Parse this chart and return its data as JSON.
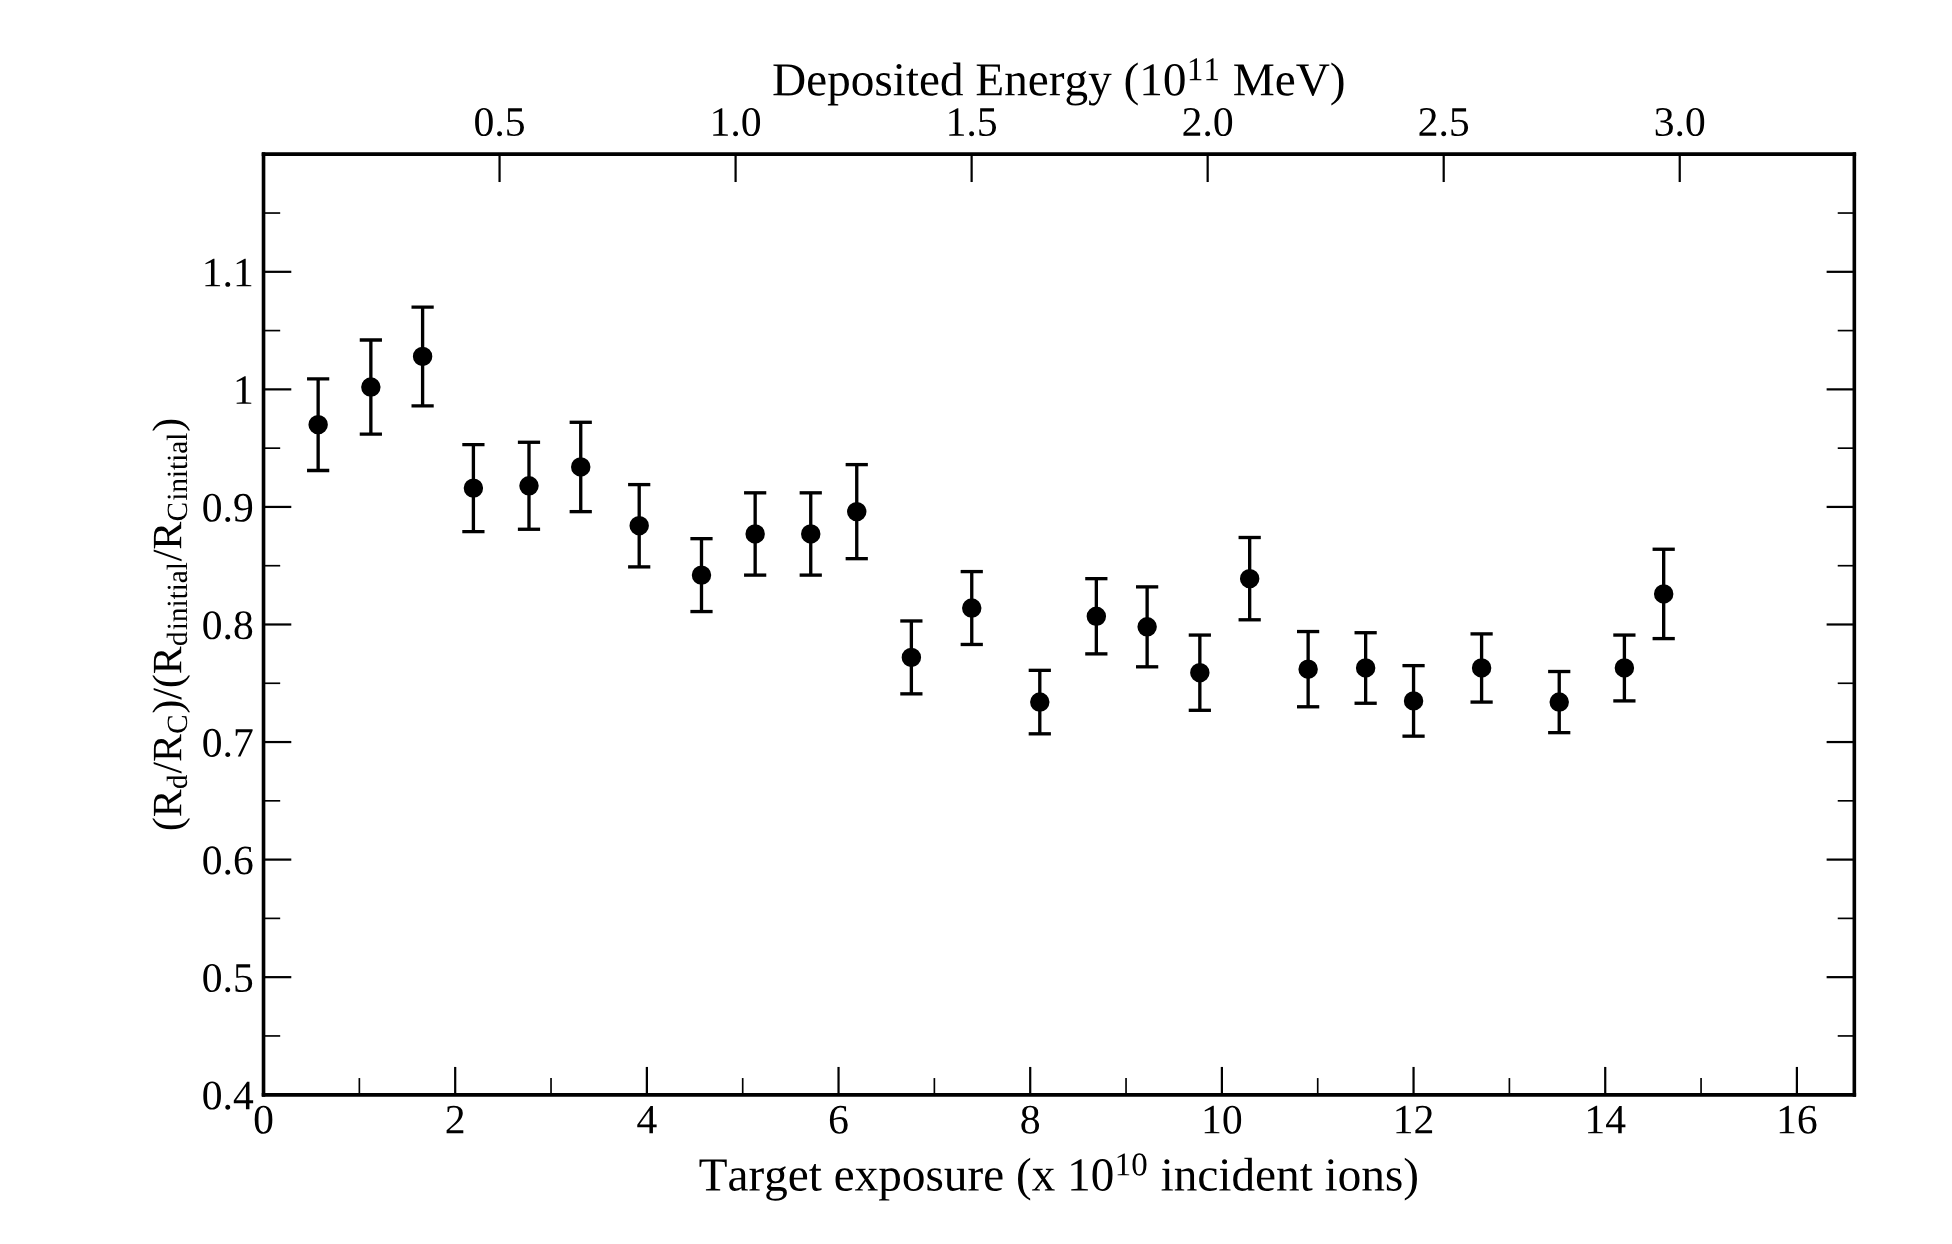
{
  "chart_data": {
    "type": "scatter",
    "xlabel": "Target exposure (x 10$^{10}$ incident ions)",
    "ylabel": "(R$_{d}$/R$_{C}$)/(R$_{d}$$_{initial}$/R$_{C}$$_{initial}$)",
    "x2label": "Deposited Energy (10$^{11}$ MeV)",
    "x": [
      0.57,
      1.12,
      1.66,
      2.19,
      2.77,
      3.31,
      3.92,
      4.57,
      5.13,
      5.71,
      6.19,
      6.76,
      7.39,
      8.1,
      8.69,
      9.22,
      9.77,
      10.29,
      10.9,
      11.5,
      12.0,
      12.71,
      13.52,
      14.2,
      14.61
    ],
    "values": [
      0.97,
      1.002,
      1.028,
      0.916,
      0.918,
      0.934,
      0.884,
      0.842,
      0.877,
      0.877,
      0.896,
      0.772,
      0.814,
      0.734,
      0.807,
      0.798,
      0.759,
      0.839,
      0.762,
      0.763,
      0.735,
      0.763,
      0.734,
      0.763,
      0.826
    ],
    "errors": [
      0.039,
      0.04,
      0.042,
      0.037,
      0.037,
      0.038,
      0.035,
      0.031,
      0.035,
      0.035,
      0.04,
      0.031,
      0.031,
      0.027,
      0.032,
      0.034,
      0.032,
      0.035,
      0.032,
      0.03,
      0.03,
      0.029,
      0.026,
      0.028,
      0.038
    ],
    "color": "#000000",
    "marker": "circle",
    "grid": false,
    "legend": false,
    "xlim": [
      0,
      16.6
    ],
    "xticks": [
      0,
      {
        "value": 1,
        "label": null
      },
      2,
      {
        "value": 3,
        "label": null
      },
      4,
      {
        "value": 5,
        "label": null
      },
      6,
      {
        "value": 7,
        "label": null
      },
      8,
      {
        "value": 9,
        "label": null
      },
      10,
      {
        "value": 11,
        "label": null
      },
      12,
      {
        "value": 13,
        "label": null
      },
      14,
      {
        "value": 15,
        "label": null
      },
      16
    ],
    "ylim": [
      0.4,
      1.2
    ],
    "yticks": [
      0.4,
      {
        "value": 0.45,
        "label": null
      },
      0.5,
      {
        "value": 0.55,
        "label": null
      },
      0.6,
      {
        "value": 0.65,
        "label": null
      },
      0.7,
      {
        "value": 0.75,
        "label": null
      },
      0.8,
      {
        "value": 0.85,
        "label": null
      },
      0.9,
      {
        "value": 0.95,
        "label": null
      },
      1,
      {
        "value": 1.05,
        "label": null
      },
      1.1,
      {
        "value": 1.15,
        "label": null
      }
    ],
    "x2lim": [
      0,
      3.37
    ],
    "x2ticks": [
      0.5,
      {
        "value": 1.0,
        "label": "1.0"
      },
      1.5,
      {
        "value": 2.0,
        "label": "2.0"
      },
      2.5,
      {
        "value": 3.0,
        "label": "3.0"
      }
    ]
  }
}
